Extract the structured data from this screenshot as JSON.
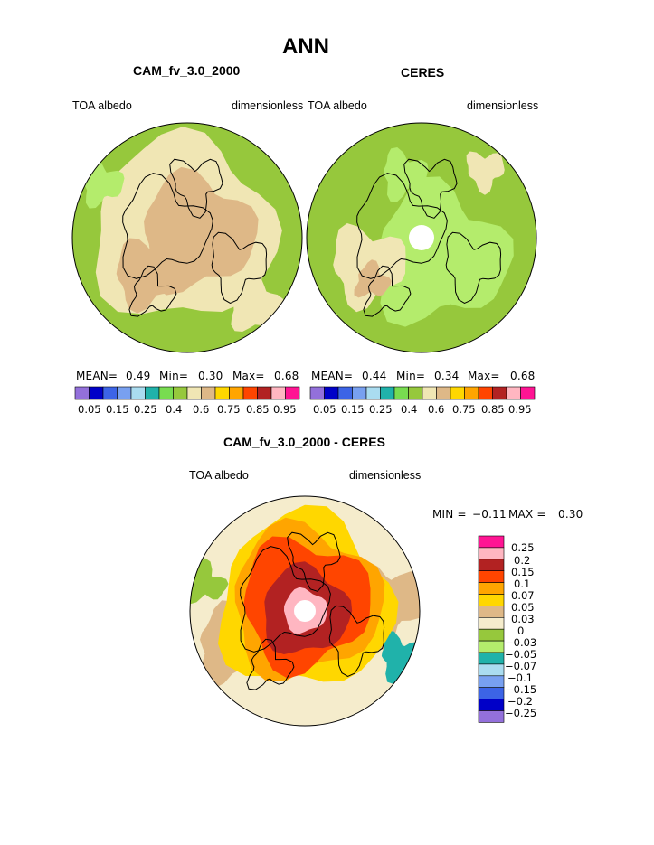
{
  "page_title": "ANN",
  "panels": [
    {
      "title": "CAM_fv_3.0_2000",
      "left_label": "TOA albedo",
      "right_label": "dimensionless",
      "stats": {
        "mean_label": "MEAN=",
        "mean": "0.49",
        "min_label": "Min=",
        "min": "0.30",
        "max_label": "Max=",
        "max": "0.68"
      }
    },
    {
      "title": "CERES",
      "left_label": "TOA albedo",
      "right_label": "dimensionless",
      "stats": {
        "mean_label": "MEAN=",
        "mean": "0.44",
        "min_label": "Min=",
        "min": "0.34",
        "max_label": "Max=",
        "max": "0.68"
      }
    },
    {
      "title": "CAM_fv_3.0_2000 - CERES",
      "left_label": "TOA albedo",
      "right_label": "dimensionless",
      "stats": {
        "min_label": "MIN =",
        "min": "−0.11",
        "max_label": "MAX =",
        "max": "0.30"
      }
    }
  ],
  "chart_data": [
    {
      "type": "heatmap",
      "projection": "north-polar-stereographic",
      "title": "CAM_fv_3.0_2000",
      "variable": "TOA albedo",
      "units": "dimensionless",
      "stats": {
        "mean": 0.49,
        "min": 0.3,
        "max": 0.68
      },
      "colorbar": {
        "orientation": "horizontal",
        "colors": [
          "#9370db",
          "#0000c8",
          "#3c64e6",
          "#78a0f0",
          "#aadcf0",
          "#20b2aa",
          "#78dc50",
          "#96c83c",
          "#f0e6b4",
          "#deb887",
          "#ffd700",
          "#ffa500",
          "#ff4500",
          "#b22222",
          "#ffb6c1",
          "#ff1493"
        ],
        "tick_labels": [
          "0.05",
          "0.15",
          "0.25",
          "0.4",
          "0.6",
          "0.75",
          "0.85",
          "0.95"
        ]
      }
    },
    {
      "type": "heatmap",
      "projection": "north-polar-stereographic",
      "title": "CERES",
      "variable": "TOA albedo",
      "units": "dimensionless",
      "stats": {
        "mean": 0.44,
        "min": 0.34,
        "max": 0.68
      },
      "colorbar": {
        "orientation": "horizontal",
        "colors": [
          "#9370db",
          "#0000c8",
          "#3c64e6",
          "#78a0f0",
          "#aadcf0",
          "#20b2aa",
          "#78dc50",
          "#96c83c",
          "#f0e6b4",
          "#deb887",
          "#ffd700",
          "#ffa500",
          "#ff4500",
          "#b22222",
          "#ffb6c1",
          "#ff1493"
        ],
        "tick_labels": [
          "0.05",
          "0.15",
          "0.25",
          "0.4",
          "0.6",
          "0.75",
          "0.85",
          "0.95"
        ]
      }
    },
    {
      "type": "heatmap",
      "projection": "north-polar-stereographic",
      "title": "CAM_fv_3.0_2000 - CERES",
      "variable": "TOA albedo",
      "units": "dimensionless",
      "stats": {
        "min": -0.11,
        "max": 0.3
      },
      "colorbar": {
        "orientation": "vertical",
        "colors_top_to_bottom": [
          "#ff1493",
          "#ffb6c1",
          "#b22222",
          "#ff4500",
          "#ffa500",
          "#ffd700",
          "#deb887",
          "#f5eccc",
          "#96c83c",
          "#b4ec6c",
          "#20b2aa",
          "#aadcf0",
          "#78a0f0",
          "#3c64e6",
          "#0000c8",
          "#9370db"
        ],
        "tick_labels_top_to_bottom": [
          "0.25",
          "0.2",
          "0.15",
          "0.1",
          "0.07",
          "0.05",
          "0.03",
          "0",
          "−0.03",
          "−0.05",
          "−0.07",
          "−0.1",
          "−0.15",
          "−0.2",
          "−0.25"
        ]
      }
    }
  ]
}
